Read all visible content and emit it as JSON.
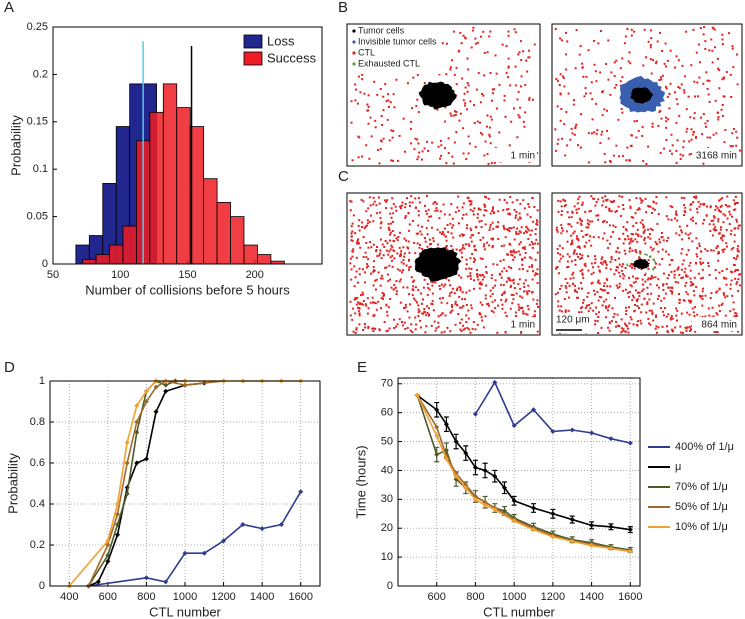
{
  "chart_data": [
    {
      "type": "histogram",
      "panel": "A",
      "xlabel": "Number of collisions before 5 hours",
      "ylabel": "Probability",
      "xlim": [
        50,
        250
      ],
      "xticks": [
        50,
        100,
        150,
        200
      ],
      "ylim": [
        0,
        0.25
      ],
      "yticks": [
        0,
        0.05,
        0.1,
        0.15,
        0.2,
        0.25
      ],
      "legend": "upper right",
      "series": [
        {
          "name": "Loss",
          "color": "#22278f",
          "bins": [
            67,
            77,
            87,
            97,
            107,
            117,
            127
          ],
          "values": [
            0.02,
            0.03,
            0.085,
            0.145,
            0.19,
            0.19
          ]
        },
        {
          "name": "Success",
          "color": "#ee1c24",
          "bins": [
            72,
            82,
            92,
            102,
            112,
            122,
            132,
            142,
            152,
            162,
            172,
            182,
            192,
            202,
            212,
            222
          ],
          "values": [
            0.005,
            0.01,
            0.02,
            0.04,
            0.13,
            0.16,
            0.19,
            0.165,
            0.145,
            0.09,
            0.065,
            0.05,
            0.02,
            0.01,
            0.003
          ]
        }
      ],
      "vlines": [
        {
          "x": 117,
          "y": 0.235,
          "color": "#5cc8e6"
        },
        {
          "x": 153,
          "y": 0.23,
          "color": "#000000"
        }
      ]
    },
    {
      "type": "simulation",
      "panel": "B",
      "legend": [
        "Tumor cells",
        "Invisible tumor cells",
        "CTL",
        "Exhausted CTL"
      ],
      "frames": [
        {
          "label": "1 min"
        },
        {
          "label": "3168 min"
        }
      ]
    },
    {
      "type": "simulation",
      "panel": "C",
      "frames": [
        {
          "label": "1 min"
        },
        {
          "label": "864 min",
          "scale_bar": "120 μm"
        }
      ]
    },
    {
      "type": "line",
      "panel": "D",
      "xlabel": "CTL number",
      "ylabel": "Probability",
      "grid": true,
      "xlim": [
        300,
        1700
      ],
      "xticks": [
        400,
        600,
        800,
        1000,
        1200,
        1400,
        1600
      ],
      "ylim": [
        0,
        1
      ],
      "yticks": [
        0,
        0.2,
        0.4,
        0.6,
        0.8,
        1
      ],
      "series": [
        {
          "color": "#2e3b8f",
          "x": [
            500,
            800,
            900,
            1000,
            1100,
            1200,
            1300,
            1400,
            1500,
            1600
          ],
          "values": [
            0,
            0.04,
            0.02,
            0.16,
            0.16,
            0.22,
            0.3,
            0.28,
            0.3,
            0.46
          ]
        },
        {
          "color": "#000000",
          "x": [
            500,
            550,
            600,
            650,
            700,
            750,
            800,
            850,
            900,
            1000,
            1100
          ],
          "values": [
            0,
            0.02,
            0.12,
            0.25,
            0.48,
            0.6,
            0.62,
            0.85,
            0.95,
            0.98,
            0.99
          ]
        },
        {
          "color": "#4d5a2a",
          "x": [
            500,
            600,
            650,
            700,
            750,
            800,
            850,
            900,
            950,
            1000
          ],
          "values": [
            0,
            0.15,
            0.3,
            0.45,
            0.75,
            0.95,
            1,
            0.98,
            1,
            1
          ]
        },
        {
          "color": "#a0692a",
          "x": [
            500,
            600,
            650,
            700,
            750,
            800,
            850,
            900,
            1000,
            1200
          ],
          "values": [
            0,
            0.2,
            0.35,
            0.6,
            0.8,
            0.9,
            0.97,
            1,
            0.98,
            1
          ]
        },
        {
          "color": "#f0a030",
          "x": [
            400,
            600,
            650,
            700,
            750,
            800,
            850,
            900,
            1000,
            1200,
            1300,
            1400,
            1500,
            1600
          ],
          "values": [
            0,
            0.22,
            0.4,
            0.7,
            0.88,
            0.95,
            1,
            1,
            1,
            1,
            1,
            1,
            1,
            1
          ]
        }
      ]
    },
    {
      "type": "line",
      "panel": "E",
      "xlabel": "CTL number",
      "ylabel": "Time (hours)",
      "grid": true,
      "legend": "right",
      "xlim": [
        400,
        1650
      ],
      "xticks": [
        600,
        800,
        1000,
        1200,
        1400,
        1600
      ],
      "ylim": [
        0,
        72
      ],
      "yticks": [
        0,
        10,
        20,
        30,
        40,
        50,
        60,
        70
      ],
      "series": [
        {
          "name": "400% of 1/μ",
          "color": "#2e3b8f",
          "x": [
            800,
            900,
            1000,
            1100,
            1200,
            1300,
            1400,
            1500,
            1600
          ],
          "values": [
            59.5,
            70.5,
            55.5,
            61,
            53.5,
            54,
            53,
            51,
            49.5
          ]
        },
        {
          "name": "μ",
          "color": "#000000",
          "x": [
            500,
            600,
            650,
            700,
            750,
            800,
            850,
            900,
            950,
            1000,
            1100,
            1200,
            1300,
            1400,
            1500,
            1600
          ],
          "values": [
            66,
            61,
            56,
            50,
            46,
            41,
            40,
            38,
            34,
            29.5,
            27,
            25,
            23,
            21,
            20.5,
            19.5
          ],
          "errors": [
            0,
            2.5,
            2.5,
            2.5,
            2.5,
            2.5,
            2.5,
            2,
            2,
            1.5,
            1.5,
            1.5,
            1.2,
            1.2,
            1,
            1
          ]
        },
        {
          "name": "70% of 1/μ",
          "color": "#4d5a2a",
          "x": [
            500,
            600,
            650,
            700,
            750,
            800,
            850,
            900,
            950,
            1000,
            1100,
            1200,
            1300,
            1400,
            1500,
            1600
          ],
          "values": [
            66,
            45.5,
            47,
            37,
            34,
            31,
            29,
            27,
            26,
            23.5,
            20.5,
            18,
            16,
            15,
            13.5,
            12.5
          ],
          "errors": [
            0,
            2.5,
            2.5,
            2.5,
            2,
            2,
            2,
            1.5,
            1.5,
            1.2,
            1.2,
            1,
            1,
            1,
            0.8,
            0.8
          ]
        },
        {
          "name": "50% of 1/μ",
          "color": "#a0692a",
          "x": [
            500,
            600,
            650,
            700,
            750,
            800,
            850,
            900,
            1000,
            1100,
            1200,
            1300,
            1400,
            1500,
            1600
          ],
          "values": [
            66,
            55,
            45,
            39,
            35,
            31,
            29,
            27,
            23,
            20,
            17.5,
            15.5,
            14.5,
            13,
            12
          ]
        },
        {
          "name": "10% of 1/μ",
          "color": "#f0a030",
          "x": [
            500,
            600,
            650,
            700,
            750,
            800,
            850,
            900,
            1000,
            1100,
            1200,
            1300,
            1400,
            1500,
            1600
          ],
          "values": [
            66,
            52,
            44,
            38,
            34,
            30,
            28,
            26.5,
            22.5,
            19.5,
            17,
            15.5,
            14,
            13,
            12
          ]
        }
      ]
    }
  ]
}
